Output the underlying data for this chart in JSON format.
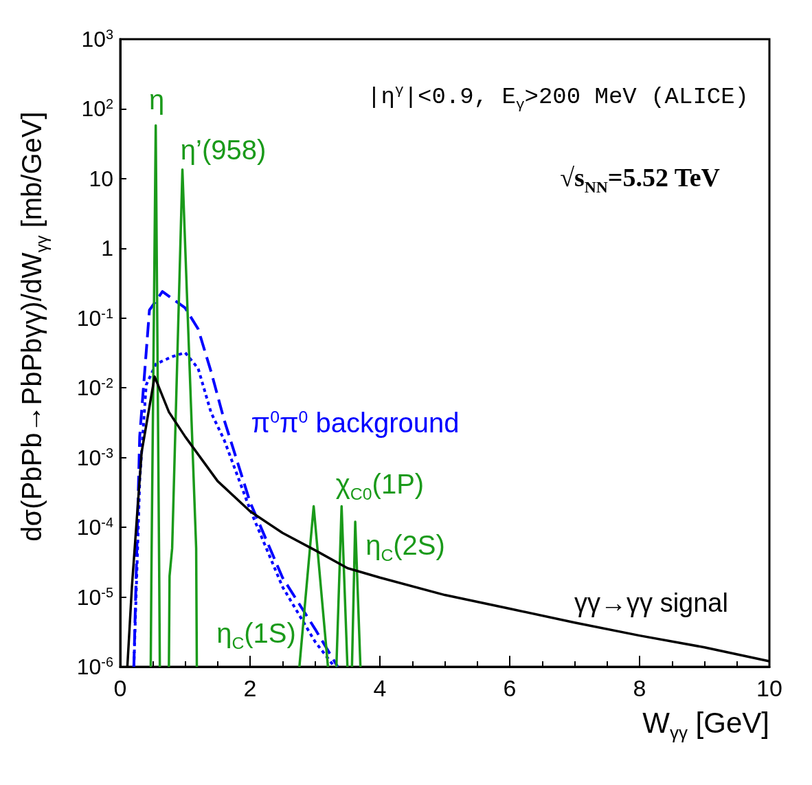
{
  "chart_data": {
    "type": "line",
    "xlabel": "W$_{γγ}$ [GeV]",
    "ylabel": "dσ(PbPb→PbPbγγ)/dW$_{γγ}$ [mb/GeV]",
    "xlim": [
      0,
      10
    ],
    "xticks": [
      0,
      2,
      4,
      6,
      8,
      10
    ],
    "ylim": [
      1e-06,
      1000
    ],
    "log": "y",
    "yticks": [
      {
        "value": 1e-06,
        "label": "10$^{-6}$"
      },
      {
        "value": 1e-05,
        "label": "10$^{-5}$"
      },
      {
        "value": 0.0001,
        "label": "10$^{-4}$"
      },
      {
        "value": 0.001,
        "label": "10$^{-3}$"
      },
      {
        "value": 0.01,
        "label": "10$^{-2}$"
      },
      {
        "value": 0.1,
        "label": "10$^{-1}$"
      },
      1,
      10,
      {
        "value": 100,
        "label": "10$^{2}$"
      },
      {
        "value": 1000,
        "label": "10$^{3}$"
      }
    ],
    "grid": false,
    "marker": "none",
    "series": [
      {
        "color": "#000000",
        "line_style": "solid",
        "x": [
          0.11,
          0.18,
          0.33,
          0.53,
          0.75,
          1.0,
          1.5,
          2.0,
          2.5,
          3.0,
          3.5,
          4.0,
          5.0,
          6.0,
          7.0,
          8.0,
          9.0,
          10.0
        ],
        "values": [
          1e-06,
          1.4e-05,
          0.0012,
          0.0145,
          0.0045,
          0.002,
          0.00046,
          0.00017,
          8.3e-05,
          4.7e-05,
          2.6e-05,
          1.9e-05,
          1.07e-05,
          6.8e-06,
          4.3e-06,
          2.8e-06,
          1.9e-06,
          1.2e-06
        ]
      },
      {
        "color": "#0000ff",
        "line_style": "dashed",
        "x": [
          0.21,
          0.3,
          0.45,
          0.65,
          1.0,
          1.2,
          1.4,
          1.6,
          2.0,
          2.5,
          3.0,
          3.35
        ],
        "values": [
          1e-06,
          0.002,
          0.13,
          0.24,
          0.14,
          0.07,
          0.017,
          0.0035,
          0.00023,
          1.9e-05,
          3.5e-06,
          1e-06
        ]
      },
      {
        "color": "#0000ff",
        "line_style": "dotted",
        "x": [
          0.21,
          0.3,
          0.4,
          0.55,
          0.8,
          1.0,
          1.2,
          1.4,
          1.6,
          2.0,
          2.5,
          3.0,
          3.3
        ],
        "values": [
          1e-06,
          0.00046,
          0.011,
          0.022,
          0.028,
          0.032,
          0.019,
          0.0044,
          0.0018,
          0.00018,
          1.4e-05,
          2.3e-06,
          1e-06
        ]
      },
      {
        "color": "#1a9a1a",
        "line_style": "solid",
        "x": [
          0.47,
          0.48,
          0.547,
          0.6,
          0.61,
          0.7,
          0.75,
          0.76,
          0.8,
          0.958,
          1.17,
          1.18,
          2.0,
          2.76,
          2.98,
          3.2,
          3.3,
          3.33,
          3.41,
          3.5,
          3.55,
          3.57,
          3.62,
          3.7
        ],
        "values": [
          1e-06,
          2e-05,
          58,
          2.5e-05,
          1e-06,
          null,
          1e-06,
          2e-05,
          5e-05,
          13.5,
          5e-05,
          1e-06,
          null,
          1e-06,
          0.0002,
          1e-06,
          null,
          1e-06,
          0.0002,
          1e-06,
          null,
          1e-06,
          0.00012,
          1e-06
        ]
      }
    ],
    "annotations": [
      "|η$^{γ}$|<0.9, E$_{γ}$>200 MeV (ALICE)",
      "√s$_{NN}$=5.52 TeV",
      "η",
      "η’(958)",
      "π$^{0}$π$^{0}$ background",
      "χ$_{C0}$(1P)",
      "η$_{C}$(2S)",
      "η$_{C}$(1S)",
      "γγ→γγ signal"
    ]
  }
}
